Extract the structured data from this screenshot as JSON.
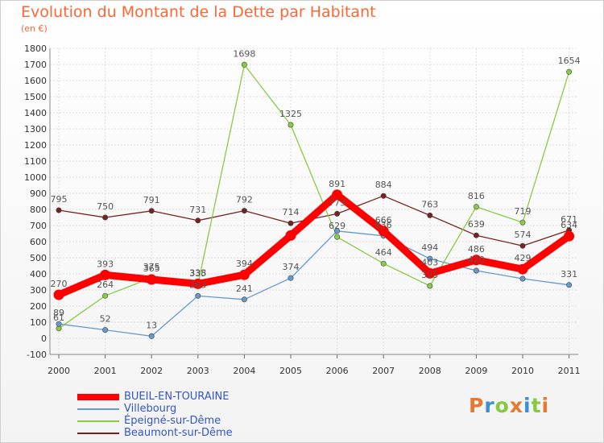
{
  "chart_data": {
    "type": "line",
    "title": "Evolution du Montant de la Dette par Habitant",
    "unit_label": "(en €)",
    "x": [
      "2000",
      "2001",
      "2002",
      "2003",
      "2004",
      "2005",
      "2006",
      "2007",
      "2008",
      "2009",
      "2010",
      "2011"
    ],
    "ylim": [
      -100,
      1800
    ],
    "yticks": [
      "-100",
      "0",
      "100",
      "200",
      "300",
      "400",
      "500",
      "600",
      "700",
      "800",
      "900",
      "1000",
      "1100",
      "1200",
      "1300",
      "1400",
      "1500",
      "1600",
      "1700",
      "1800"
    ],
    "grid": true,
    "legend_position": "bottom-left",
    "series": [
      {
        "name": "BUEIL-EN-TOURAINE",
        "color": "#ff0000",
        "values": [
          270,
          393,
          365,
          338,
          394,
          638,
          891,
          666,
          403,
          486,
          429,
          634
        ]
      },
      {
        "name": "Villebourg",
        "color": "#6699cc",
        "values": [
          89,
          52,
          13,
          263,
          241,
          374,
          666,
          636,
          494,
          420,
          370,
          331
        ]
      },
      {
        "name": "Épeigné-sur-Dême",
        "color": "#88cc44",
        "values": [
          61,
          264,
          375,
          335,
          1698,
          1325,
          629,
          464,
          325,
          816,
          719,
          1654
        ]
      },
      {
        "name": "Beaumont-sur-Dême",
        "color": "#772222",
        "values": [
          795,
          750,
          791,
          731,
          792,
          714,
          773,
          884,
          763,
          639,
          574,
          671
        ]
      }
    ],
    "data_labels": [
      [
        "270",
        "393",
        "365",
        "338",
        "394",
        "",
        "891",
        "666",
        "403",
        "486",
        "429",
        "634"
      ],
      [
        "89",
        "52",
        "13",
        "263",
        "241",
        "374",
        "",
        "636",
        "494",
        "420",
        "",
        "331"
      ],
      [
        "61",
        "264",
        "375",
        "335",
        "1698",
        "1325",
        "629",
        "464",
        "325",
        "816",
        "719",
        "1654"
      ],
      [
        "795",
        "750",
        "791",
        "731",
        "792",
        "714",
        "773",
        "884",
        "763",
        "639",
        "574",
        "671"
      ]
    ]
  },
  "brand": "Proxiti",
  "brand_colors": [
    "#e87830",
    "#3a8fd6",
    "#88c840",
    "#e87830",
    "#3a8fd6",
    "#88c840",
    "#e87830"
  ]
}
